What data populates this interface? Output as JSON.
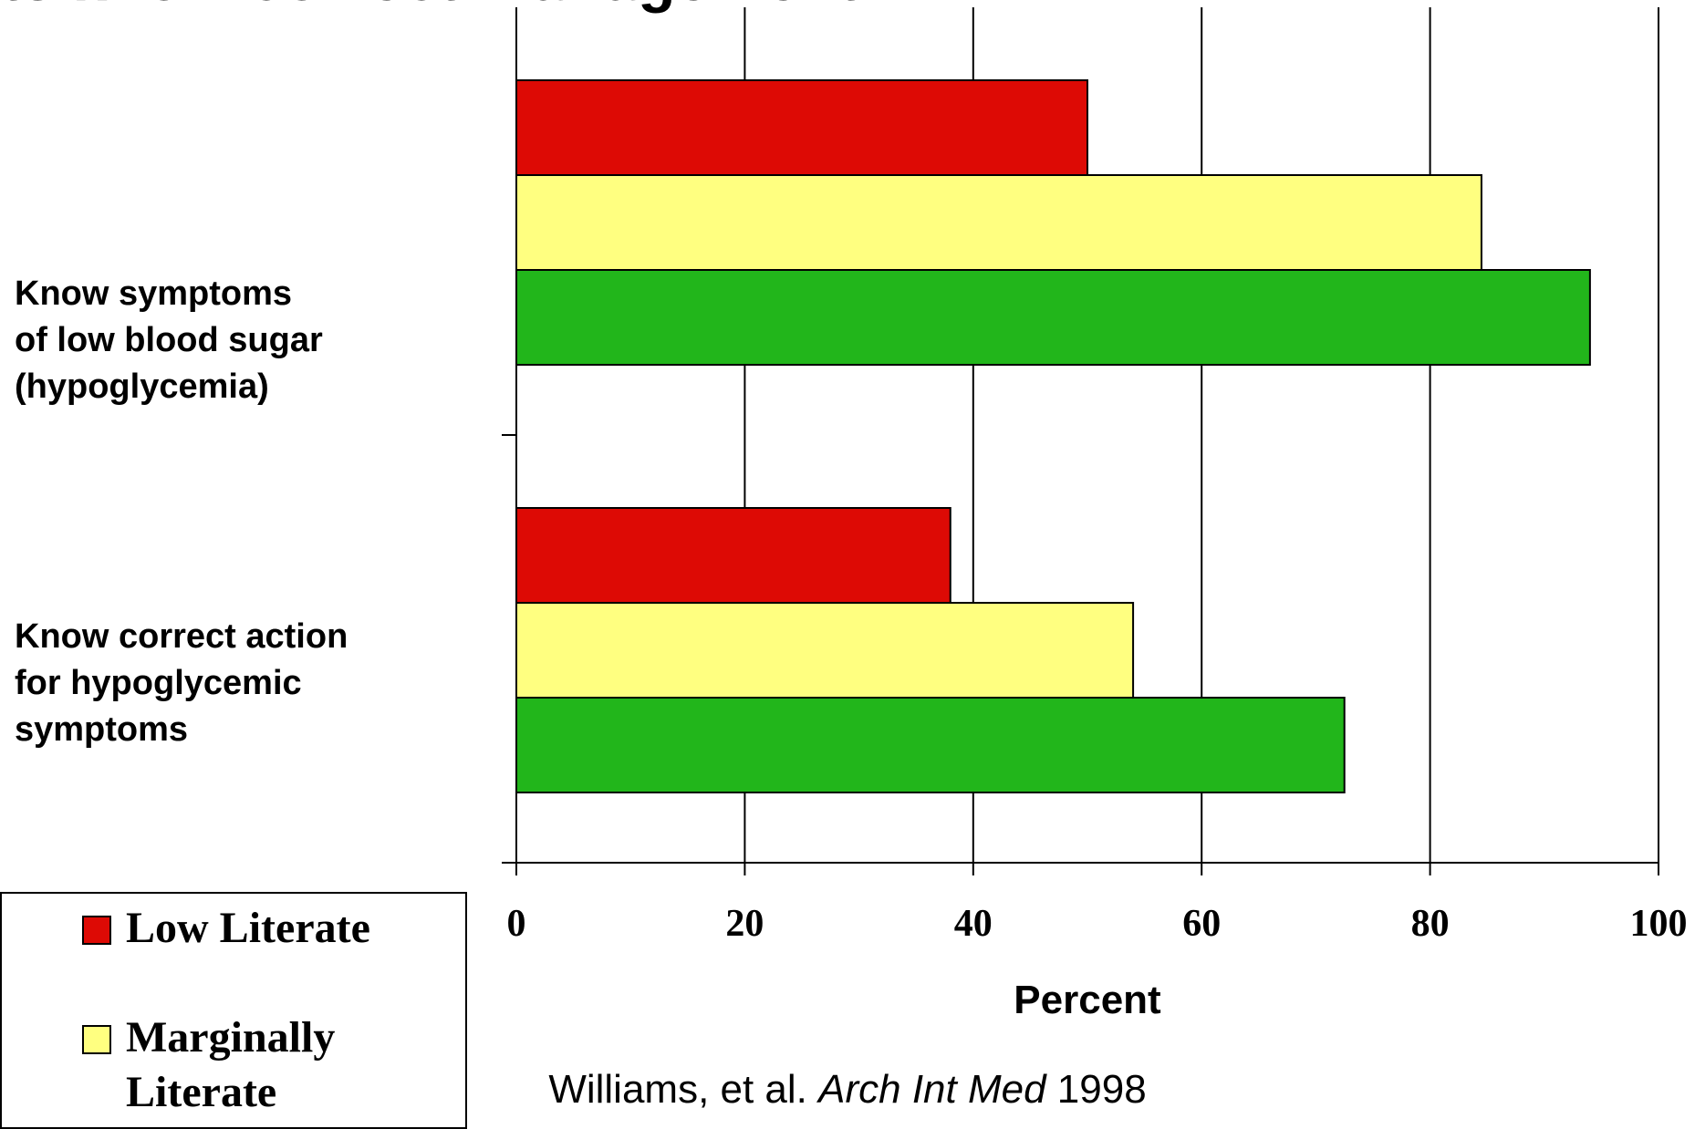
{
  "title": "ts know correct management...",
  "chart_data": {
    "type": "bar",
    "orientation": "horizontal",
    "categories": [
      "Know symptoms\nof low blood sugar\n(hypoglycemia)",
      "Know correct action\nfor hypoglycemic\nsymptoms"
    ],
    "series": [
      {
        "name": "Low Literate",
        "color": "#dd0a05",
        "values": [
          50,
          38
        ]
      },
      {
        "name": "Marginally\nLiterate",
        "color": "#ffff80",
        "values": [
          84.5,
          54
        ]
      },
      {
        "name": "",
        "color": "#22b61b",
        "values": [
          94,
          72.5
        ]
      }
    ],
    "xlabel": "Percent",
    "xlim": [
      0,
      100
    ],
    "xticks": [
      "0",
      "20",
      "40",
      "60",
      "80",
      "100"
    ],
    "grid": "vertical",
    "legend": "bottom-left"
  },
  "source": {
    "authors": "Williams, et al. ",
    "journal": "Arch Int Med",
    "year": " 1998"
  }
}
